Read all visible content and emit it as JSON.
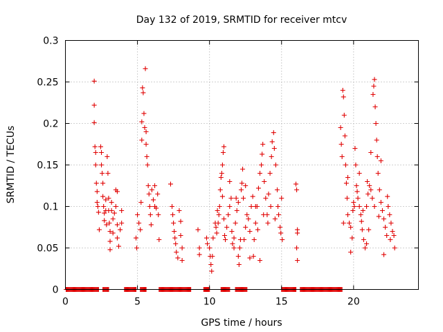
{
  "chart_data": {
    "type": "scatter",
    "title": "Day 132 of 2019, SRMTID for receiver mtcv",
    "xlabel": "GPS time / hours",
    "ylabel": "SRMTID / TECUs",
    "xlim": [
      0,
      24.5
    ],
    "ylim": [
      0,
      0.3
    ],
    "x_ticks": [
      0,
      5,
      10,
      15,
      20
    ],
    "x_tick_labels": [
      "0",
      "5",
      "10",
      "15",
      "20"
    ],
    "y_ticks": [
      0,
      0.05,
      0.1,
      0.15,
      0.2,
      0.25,
      0.3
    ],
    "y_tick_labels": [
      "0",
      "0.05",
      "0.1",
      "0.15",
      "0.2",
      "0.25",
      "0.3"
    ],
    "grid": true,
    "marker": "+",
    "color": "#e00000",
    "series": [
      {
        "name": "SRMTID",
        "points": [
          [
            2.0,
            0.251
          ],
          [
            2.0,
            0.222
          ],
          [
            2.0,
            0.201
          ],
          [
            2.05,
            0.172
          ],
          [
            2.1,
            0.165
          ],
          [
            2.1,
            0.15
          ],
          [
            2.15,
            0.128
          ],
          [
            2.2,
            0.118
          ],
          [
            2.2,
            0.105
          ],
          [
            2.25,
            0.1
          ],
          [
            2.3,
            0.093
          ],
          [
            2.35,
            0.072
          ],
          [
            2.45,
            0.172
          ],
          [
            2.5,
            0.165
          ],
          [
            2.5,
            0.15
          ],
          [
            2.55,
            0.14
          ],
          [
            2.6,
            0.128
          ],
          [
            2.6,
            0.112
          ],
          [
            2.65,
            0.1
          ],
          [
            2.7,
            0.092
          ],
          [
            2.7,
            0.083
          ],
          [
            2.8,
            0.108
          ],
          [
            2.8,
            0.095
          ],
          [
            2.85,
            0.078
          ],
          [
            2.9,
            0.16
          ],
          [
            2.95,
            0.14
          ],
          [
            3.0,
            0.11
          ],
          [
            3.0,
            0.095
          ],
          [
            3.05,
            0.08
          ],
          [
            3.1,
            0.07
          ],
          [
            3.1,
            0.058
          ],
          [
            3.1,
            0.048
          ],
          [
            3.2,
            0.095
          ],
          [
            3.3,
            0.085
          ],
          [
            3.3,
            0.068
          ],
          [
            3.4,
            0.092
          ],
          [
            3.5,
            0.12
          ],
          [
            3.5,
            0.1
          ],
          [
            3.6,
            0.078
          ],
          [
            3.6,
            0.062
          ],
          [
            3.7,
            0.052
          ],
          [
            3.8,
            0.072
          ],
          [
            3.9,
            0.095
          ],
          [
            3.9,
            0.08
          ],
          [
            3.6,
            0.118
          ],
          [
            3.2,
            0.105
          ],
          [
            4.9,
            0.062
          ],
          [
            4.95,
            0.05
          ],
          [
            5.0,
            0.09
          ],
          [
            5.1,
            0.08
          ],
          [
            5.2,
            0.072
          ],
          [
            5.25,
            0.105
          ],
          [
            5.3,
            0.202
          ],
          [
            5.35,
            0.243
          ],
          [
            5.4,
            0.237
          ],
          [
            5.45,
            0.212
          ],
          [
            5.5,
            0.195
          ],
          [
            5.55,
            0.266
          ],
          [
            5.6,
            0.19
          ],
          [
            5.65,
            0.16
          ],
          [
            5.7,
            0.15
          ],
          [
            5.75,
            0.125
          ],
          [
            5.8,
            0.115
          ],
          [
            5.85,
            0.1
          ],
          [
            5.9,
            0.09
          ],
          [
            5.95,
            0.078
          ],
          [
            6.0,
            0.12
          ],
          [
            6.1,
            0.108
          ],
          [
            6.2,
            0.1
          ],
          [
            6.3,
            0.098
          ],
          [
            6.4,
            0.115
          ],
          [
            6.45,
            0.09
          ],
          [
            6.5,
            0.06
          ],
          [
            5.3,
            0.18
          ],
          [
            5.6,
            0.175
          ],
          [
            6.2,
            0.125
          ],
          [
            7.3,
            0.127
          ],
          [
            7.4,
            0.1
          ],
          [
            7.45,
            0.09
          ],
          [
            7.5,
            0.08
          ],
          [
            7.55,
            0.07
          ],
          [
            7.6,
            0.062
          ],
          [
            7.65,
            0.055
          ],
          [
            7.7,
            0.045
          ],
          [
            7.8,
            0.038
          ],
          [
            7.9,
            0.095
          ],
          [
            8.0,
            0.082
          ],
          [
            8.0,
            0.065
          ],
          [
            8.1,
            0.05
          ],
          [
            8.1,
            0.035
          ],
          [
            9.2,
            0.072
          ],
          [
            9.3,
            0.05
          ],
          [
            9.3,
            0.042
          ],
          [
            9.8,
            0.062
          ],
          [
            9.85,
            0.055
          ],
          [
            10.0,
            0.05
          ],
          [
            10.05,
            0.04
          ],
          [
            10.1,
            0.03
          ],
          [
            10.15,
            0.022
          ],
          [
            10.2,
            0.04
          ],
          [
            10.25,
            0.062
          ],
          [
            10.4,
            0.08
          ],
          [
            10.45,
            0.075
          ],
          [
            10.5,
            0.068
          ],
          [
            10.6,
            0.08
          ],
          [
            10.65,
            0.09
          ],
          [
            10.7,
            0.1
          ],
          [
            10.75,
            0.12
          ],
          [
            10.8,
            0.135
          ],
          [
            10.85,
            0.14
          ],
          [
            10.9,
            0.15
          ],
          [
            10.95,
            0.165
          ],
          [
            11.0,
            0.172
          ],
          [
            11.0,
            0.085
          ],
          [
            11.1,
            0.06
          ],
          [
            11.2,
            0.075
          ],
          [
            11.3,
            0.09
          ],
          [
            11.4,
            0.1
          ],
          [
            11.5,
            0.11
          ],
          [
            11.55,
            0.07
          ],
          [
            11.6,
            0.055
          ],
          [
            11.7,
            0.062
          ],
          [
            11.8,
            0.08
          ],
          [
            11.9,
            0.095
          ],
          [
            12.0,
            0.105
          ],
          [
            12.0,
            0.04
          ],
          [
            12.05,
            0.03
          ],
          [
            12.1,
            0.05
          ],
          [
            12.2,
            0.12
          ],
          [
            12.25,
            0.128
          ],
          [
            12.3,
            0.145
          ],
          [
            12.35,
            0.11
          ],
          [
            12.4,
            0.06
          ],
          [
            12.5,
            0.075
          ],
          [
            12.6,
            0.09
          ],
          [
            12.7,
            0.085
          ],
          [
            12.8,
            0.07
          ],
          [
            12.9,
            0.1
          ],
          [
            13.0,
            0.112
          ],
          [
            13.05,
            0.04
          ],
          [
            13.1,
            0.06
          ],
          [
            13.2,
            0.08
          ],
          [
            13.3,
            0.1
          ],
          [
            13.4,
            0.122
          ],
          [
            13.5,
            0.14
          ],
          [
            13.6,
            0.15
          ],
          [
            13.65,
            0.163
          ],
          [
            13.7,
            0.175
          ],
          [
            13.8,
            0.13
          ],
          [
            13.9,
            0.11
          ],
          [
            14.0,
            0.09
          ],
          [
            14.05,
            0.08
          ],
          [
            14.1,
            0.115
          ],
          [
            14.2,
            0.14
          ],
          [
            14.3,
            0.16
          ],
          [
            14.35,
            0.178
          ],
          [
            14.45,
            0.189
          ],
          [
            14.5,
            0.17
          ],
          [
            14.6,
            0.15
          ],
          [
            14.7,
            0.12
          ],
          [
            14.75,
            0.1
          ],
          [
            14.8,
            0.09
          ],
          [
            14.9,
            0.075
          ],
          [
            14.95,
            0.068
          ],
          [
            15.0,
            0.11
          ],
          [
            15.05,
            0.06
          ],
          [
            13.5,
            0.035
          ],
          [
            12.8,
            0.038
          ],
          [
            11.7,
            0.05
          ],
          [
            10.9,
            0.112
          ],
          [
            11.4,
            0.13
          ],
          [
            12.5,
            0.125
          ],
          [
            13.2,
            0.1
          ],
          [
            10.55,
            0.095
          ],
          [
            11.05,
            0.065
          ],
          [
            11.85,
            0.11
          ],
          [
            12.15,
            0.06
          ],
          [
            13.75,
            0.09
          ],
          [
            14.25,
            0.1
          ],
          [
            14.55,
            0.085
          ],
          [
            13.35,
            0.072
          ],
          [
            16.0,
            0.127
          ],
          [
            16.05,
            0.12
          ],
          [
            16.1,
            0.072
          ],
          [
            16.1,
            0.068
          ],
          [
            16.05,
            0.05
          ],
          [
            16.1,
            0.035
          ],
          [
            19.1,
            0.195
          ],
          [
            19.15,
            0.175
          ],
          [
            19.2,
            0.16
          ],
          [
            19.25,
            0.24
          ],
          [
            19.3,
            0.232
          ],
          [
            19.35,
            0.21
          ],
          [
            19.4,
            0.185
          ],
          [
            19.45,
            0.15
          ],
          [
            19.5,
            0.128
          ],
          [
            19.55,
            0.11
          ],
          [
            19.6,
            0.09
          ],
          [
            19.7,
            0.08
          ],
          [
            19.8,
            0.075
          ],
          [
            19.9,
            0.062
          ],
          [
            20.0,
            0.105
          ],
          [
            20.05,
            0.1
          ],
          [
            20.1,
            0.17
          ],
          [
            20.15,
            0.15
          ],
          [
            20.2,
            0.125
          ],
          [
            20.3,
            0.11
          ],
          [
            20.4,
            0.1
          ],
          [
            20.5,
            0.09
          ],
          [
            20.55,
            0.082
          ],
          [
            20.6,
            0.072
          ],
          [
            20.7,
            0.06
          ],
          [
            20.8,
            0.05
          ],
          [
            20.9,
            0.1
          ],
          [
            21.0,
            0.115
          ],
          [
            21.1,
            0.125
          ],
          [
            21.2,
            0.12
          ],
          [
            21.3,
            0.11
          ],
          [
            21.35,
            0.235
          ],
          [
            21.4,
            0.245
          ],
          [
            21.45,
            0.253
          ],
          [
            21.5,
            0.22
          ],
          [
            21.55,
            0.2
          ],
          [
            21.6,
            0.18
          ],
          [
            21.65,
            0.16
          ],
          [
            21.7,
            0.14
          ],
          [
            21.8,
            0.12
          ],
          [
            21.9,
            0.105
          ],
          [
            22.0,
            0.095
          ],
          [
            22.1,
            0.085
          ],
          [
            22.2,
            0.075
          ],
          [
            22.3,
            0.065
          ],
          [
            22.4,
            0.1
          ],
          [
            22.5,
            0.09
          ],
          [
            22.6,
            0.08
          ],
          [
            22.7,
            0.07
          ],
          [
            22.8,
            0.065
          ],
          [
            22.85,
            0.05
          ],
          [
            21.2,
            0.165
          ],
          [
            20.4,
            0.14
          ],
          [
            19.8,
            0.045
          ],
          [
            20.9,
            0.055
          ],
          [
            21.9,
            0.155
          ],
          [
            22.1,
            0.042
          ],
          [
            19.6,
            0.135
          ],
          [
            20.65,
            0.095
          ],
          [
            21.75,
            0.088
          ],
          [
            19.3,
            0.08
          ],
          [
            20.25,
            0.118
          ],
          [
            21.05,
            0.072
          ],
          [
            22.35,
            0.112
          ],
          [
            22.55,
            0.06
          ],
          [
            21.45,
            0.1
          ],
          [
            20.95,
            0.13
          ],
          [
            19.95,
            0.095
          ]
        ],
        "zero_intervals": [
          [
            0.05,
            2.3
          ],
          [
            2.6,
            3.0
          ],
          [
            4.1,
            4.9
          ],
          [
            5.2,
            5.6
          ],
          [
            6.5,
            8.7
          ],
          [
            9.6,
            10.0
          ],
          [
            10.8,
            11.4
          ],
          [
            11.8,
            12.6
          ],
          [
            15.0,
            16.0
          ],
          [
            16.3,
            19.2
          ]
        ]
      }
    ]
  }
}
